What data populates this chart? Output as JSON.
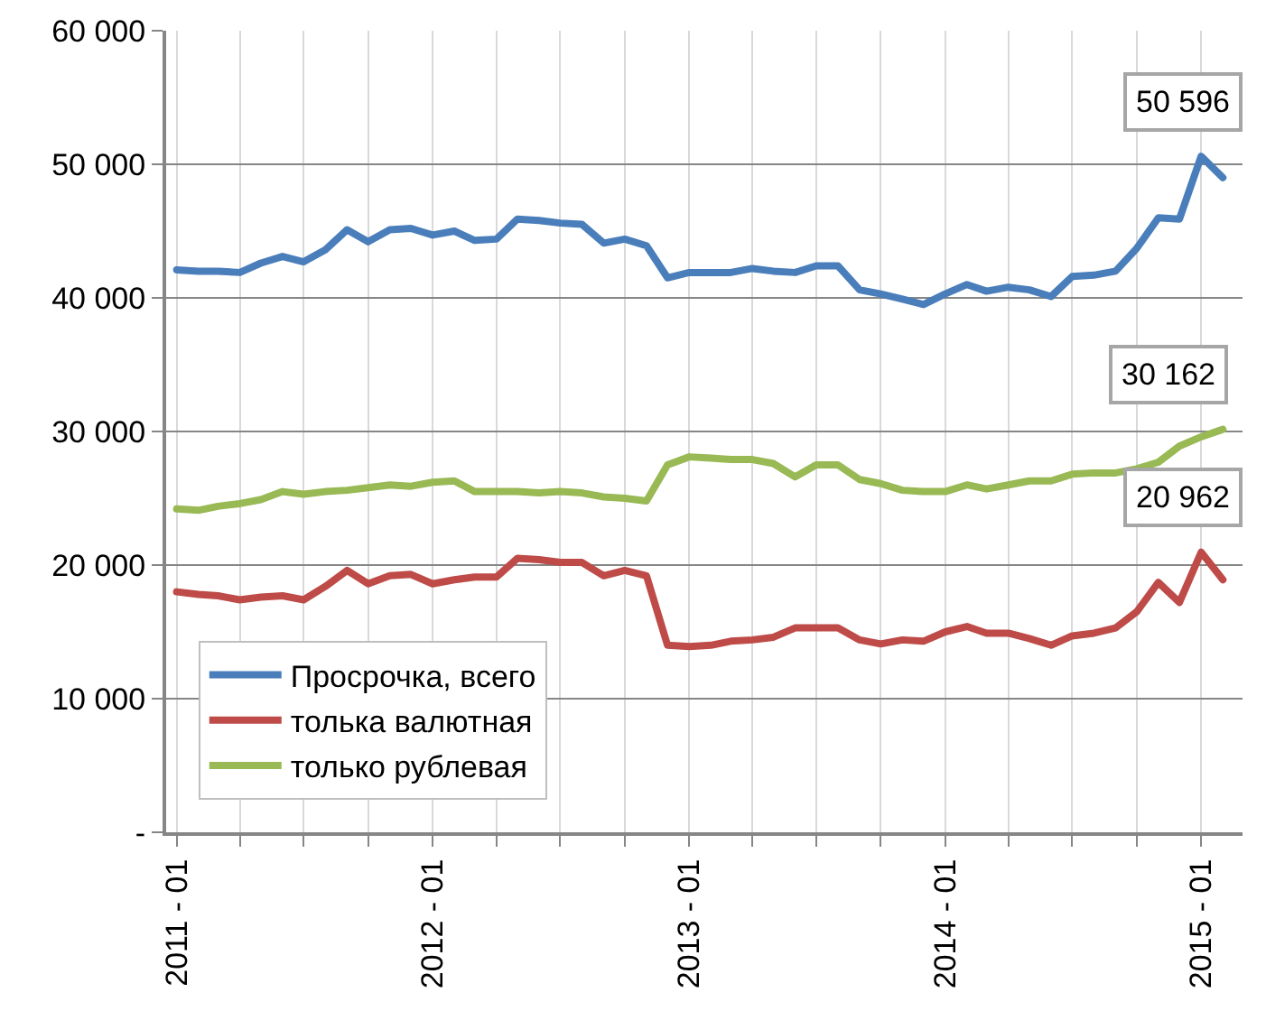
{
  "chart_data": {
    "type": "line",
    "x": [
      "2011-01",
      "2011-02",
      "2011-03",
      "2011-04",
      "2011-05",
      "2011-06",
      "2011-07",
      "2011-08",
      "2011-09",
      "2011-10",
      "2011-11",
      "2011-12",
      "2012-01",
      "2012-02",
      "2012-03",
      "2012-04",
      "2012-05",
      "2012-06",
      "2012-07",
      "2012-08",
      "2012-09",
      "2012-10",
      "2012-11",
      "2012-12",
      "2013-01",
      "2013-02",
      "2013-03",
      "2013-04",
      "2013-05",
      "2013-06",
      "2013-07",
      "2013-08",
      "2013-09",
      "2013-10",
      "2013-11",
      "2013-12",
      "2014-01",
      "2014-02",
      "2014-03",
      "2014-04",
      "2014-05",
      "2014-06",
      "2014-07",
      "2014-08",
      "2014-09",
      "2014-10",
      "2014-11",
      "2014-12",
      "2015-01",
      "2015-02"
    ],
    "series": [
      {
        "name": "Просрочка, всего",
        "color": "#4a7ebb",
        "values": [
          42100,
          42000,
          42000,
          41900,
          42600,
          43100,
          42700,
          43600,
          45100,
          44200,
          45100,
          45200,
          44700,
          45000,
          44300,
          44400,
          45900,
          45800,
          45600,
          45500,
          44100,
          44400,
          43900,
          41500,
          41900,
          41900,
          41900,
          42200,
          42000,
          41900,
          42400,
          42400,
          40600,
          40300,
          39900,
          39500,
          40300,
          41000,
          40500,
          40800,
          40600,
          40100,
          41600,
          41700,
          42000,
          43700,
          46000,
          45900,
          50596,
          49000
        ],
        "value_labels": [
          null,
          null,
          null,
          null,
          null,
          null,
          null,
          null,
          null,
          null,
          null,
          null,
          null,
          null,
          null,
          null,
          null,
          null,
          null,
          null,
          null,
          null,
          null,
          null,
          null,
          null,
          null,
          null,
          null,
          null,
          null,
          null,
          null,
          null,
          null,
          null,
          null,
          null,
          null,
          null,
          null,
          null,
          null,
          null,
          null,
          null,
          null,
          null,
          "50 596",
          null
        ]
      },
      {
        "name": "толька валютная",
        "color": "#be4b48",
        "values": [
          18000,
          17800,
          17700,
          17400,
          17600,
          17700,
          17400,
          18400,
          19600,
          18600,
          19200,
          19300,
          18600,
          18900,
          19100,
          19100,
          20500,
          20400,
          20200,
          20200,
          19200,
          19600,
          19200,
          14000,
          13900,
          14000,
          14300,
          14400,
          14600,
          15300,
          15300,
          15300,
          14400,
          14100,
          14400,
          14300,
          15000,
          15400,
          14900,
          14900,
          14500,
          14000,
          14700,
          14900,
          15300,
          16500,
          18700,
          17200,
          20962,
          18900
        ],
        "value_labels": [
          null,
          null,
          null,
          null,
          null,
          null,
          null,
          null,
          null,
          null,
          null,
          null,
          null,
          null,
          null,
          null,
          null,
          null,
          null,
          null,
          null,
          null,
          null,
          null,
          null,
          null,
          null,
          null,
          null,
          null,
          null,
          null,
          null,
          null,
          null,
          null,
          null,
          null,
          null,
          null,
          null,
          null,
          null,
          null,
          null,
          null,
          null,
          null,
          "20 962",
          null
        ]
      },
      {
        "name": "только рублевая",
        "color": "#98b954",
        "values": [
          24200,
          24100,
          24400,
          24600,
          24900,
          25500,
          25300,
          25500,
          25600,
          25800,
          26000,
          25900,
          26200,
          26300,
          25500,
          25500,
          25500,
          25400,
          25500,
          25400,
          25100,
          25000,
          24800,
          27500,
          28100,
          28000,
          27900,
          27900,
          27600,
          26600,
          27500,
          27500,
          26400,
          26100,
          25600,
          25500,
          25500,
          26000,
          25700,
          26000,
          26300,
          26300,
          26800,
          26900,
          26900,
          27200,
          27700,
          28900,
          29600,
          30162
        ],
        "value_labels": [
          null,
          null,
          null,
          null,
          null,
          null,
          null,
          null,
          null,
          null,
          null,
          null,
          null,
          null,
          null,
          null,
          null,
          null,
          null,
          null,
          null,
          null,
          null,
          null,
          null,
          null,
          null,
          null,
          null,
          null,
          null,
          null,
          null,
          null,
          null,
          null,
          null,
          null,
          null,
          null,
          null,
          null,
          null,
          null,
          null,
          null,
          null,
          null,
          null,
          "30 162"
        ]
      }
    ],
    "xlim": [
      "2010-12-17",
      "2015-03-01"
    ],
    "xticks": [
      {
        "value": "2011-01",
        "label": "2011 - 01"
      },
      {
        "value": "2011-04",
        "label": null
      },
      {
        "value": "2011-07",
        "label": null
      },
      {
        "value": "2011-10",
        "label": null
      },
      {
        "value": "2012-01",
        "label": "2012 - 01"
      },
      {
        "value": "2012-04",
        "label": null
      },
      {
        "value": "2012-07",
        "label": null
      },
      {
        "value": "2012-10",
        "label": null
      },
      {
        "value": "2013-01",
        "label": "2013 - 01"
      },
      {
        "value": "2013-04",
        "label": null
      },
      {
        "value": "2013-07",
        "label": null
      },
      {
        "value": "2013-10",
        "label": null
      },
      {
        "value": "2014-01",
        "label": "2014 - 01"
      },
      {
        "value": "2014-04",
        "label": null
      },
      {
        "value": "2014-07",
        "label": null
      },
      {
        "value": "2014-10",
        "label": null
      },
      {
        "value": "2015-01",
        "label": "2015 - 01"
      }
    ],
    "ylim": [
      0,
      60000
    ],
    "yticks": [
      {
        "value": 0,
        "label": "-"
      },
      {
        "value": 10000,
        "label": "10 000"
      },
      {
        "value": 20000,
        "label": "20 000"
      },
      {
        "value": 30000,
        "label": "30 000"
      },
      {
        "value": 40000,
        "label": "40 000"
      },
      {
        "value": 50000,
        "label": "50 000"
      },
      {
        "value": 60000,
        "label": "60 000"
      }
    ],
    "grid": true,
    "legend": "bottom left",
    "marker": "none",
    "line_style": "solid"
  }
}
